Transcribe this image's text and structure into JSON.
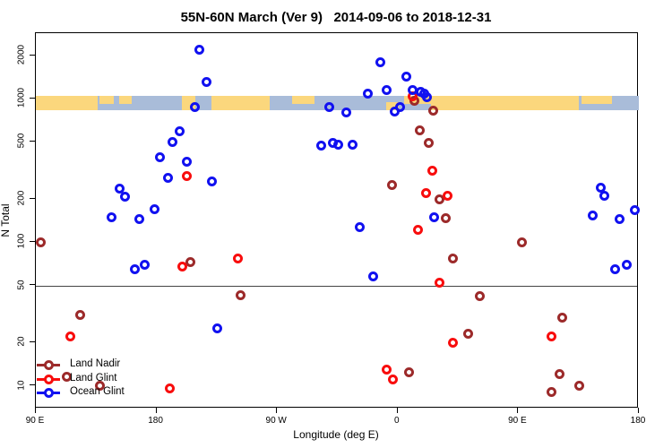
{
  "title": "55N-60N March (Ver 9)   2014-09-06 to 2018-12-31",
  "legend": [
    {
      "key": "land_nadir",
      "label": "Land Nadir"
    },
    {
      "key": "land_glint",
      "label": "Land Glint"
    },
    {
      "key": "ocean_glint",
      "label": "Ocean Glint"
    }
  ],
  "chart_data": {
    "type": "scatter",
    "title": "55N-60N March (Ver 9)   2014-09-06 to 2018-12-31",
    "xlabel": "Longitude (deg E)",
    "ylabel": "N Total",
    "x_range": [
      90,
      540
    ],
    "y_scale": "log",
    "y_anchor_top": {
      "value": 2000,
      "extra_decades_span": 160.2
    },
    "x_ticks": [
      {
        "lon": 90,
        "label": "90 E"
      },
      {
        "lon": 180,
        "label": "180"
      },
      {
        "lon": 270,
        "label": "90 W"
      },
      {
        "lon": 360,
        "label": "0"
      },
      {
        "lon": 450,
        "label": "90 E"
      },
      {
        "lon": 540,
        "label": "180"
      }
    ],
    "y_ticks": [
      10,
      20,
      50,
      100,
      200,
      500,
      1000,
      2000
    ],
    "ref_line_y": 50,
    "grid": false,
    "legend_position": "bottom-left",
    "colors": {
      "land_nadir": "#9C2A2A",
      "land_glint": "#F80D0D",
      "ocean_glint": "#1111F0",
      "strip_land": "#FBD77D",
      "strip_ocean": "#A9BCD9"
    },
    "map_strip": {
      "description": "land(orange)/ocean(blue-gray) mask band along 55N-60N",
      "n_top": 1050,
      "n_bottom": 830,
      "land_segments": [
        {
          "from": 90,
          "to": 136,
          "band": "full"
        },
        {
          "from": 137.5,
          "to": 148,
          "band": "top"
        },
        {
          "from": 152,
          "to": 161.5,
          "band": "top"
        },
        {
          "from": 199,
          "to": 209,
          "band": "full"
        },
        {
          "from": 221,
          "to": 264.5,
          "band": "full"
        },
        {
          "from": 281,
          "to": 298,
          "band": "top"
        },
        {
          "from": 351.5,
          "to": 361,
          "band": "bottom"
        },
        {
          "from": 365,
          "to": 385,
          "band": "top"
        },
        {
          "from": 385,
          "to": 495,
          "band": "full"
        },
        {
          "from": 497,
          "to": 520,
          "band": "top"
        }
      ]
    },
    "series": [
      {
        "name": "Land Nadir",
        "color_key": "land_nadir",
        "points": [
          [
            93.5,
            100
          ],
          [
            113,
            11.5
          ],
          [
            123,
            31
          ],
          [
            137.5,
            10
          ],
          [
            205.5,
            73
          ],
          [
            242.5,
            43
          ],
          [
            356,
            250
          ],
          [
            368.5,
            12.5
          ],
          [
            372.5,
            970
          ],
          [
            376.5,
            605
          ],
          [
            383,
            490
          ],
          [
            386.5,
            830
          ],
          [
            391.5,
            200
          ],
          [
            396,
            148
          ],
          [
            401.5,
            77
          ],
          [
            412.5,
            23
          ],
          [
            421,
            42
          ],
          [
            452.5,
            100
          ],
          [
            475,
            9
          ],
          [
            481,
            12
          ],
          [
            482.5,
            30
          ],
          [
            495.5,
            10
          ]
        ]
      },
      {
        "name": "Land Glint",
        "color_key": "land_glint",
        "points": [
          [
            115.5,
            22
          ],
          [
            190,
            9.6
          ],
          [
            199,
            68
          ],
          [
            202.5,
            290
          ],
          [
            241,
            77
          ],
          [
            352,
            13
          ],
          [
            356.5,
            11
          ],
          [
            371.5,
            1040
          ],
          [
            375,
            122
          ],
          [
            381,
            220
          ],
          [
            386,
            315
          ],
          [
            391.5,
            52
          ],
          [
            397,
            210
          ],
          [
            401,
            20
          ],
          [
            474.5,
            22
          ]
        ]
      },
      {
        "name": "Ocean Glint",
        "color_key": "ocean_glint",
        "points": [
          [
            146.5,
            150
          ],
          [
            152.5,
            235
          ],
          [
            156.5,
            207
          ],
          [
            164,
            65
          ],
          [
            167,
            145
          ],
          [
            171.5,
            70
          ],
          [
            178.5,
            170
          ],
          [
            182.5,
            390
          ],
          [
            188.5,
            280
          ],
          [
            192,
            500
          ],
          [
            197,
            590
          ],
          [
            202.5,
            365
          ],
          [
            208.5,
            870
          ],
          [
            212,
            2200
          ],
          [
            217.5,
            1300
          ],
          [
            221.5,
            265
          ],
          [
            225.5,
            25
          ],
          [
            303,
            470
          ],
          [
            309,
            870
          ],
          [
            311.5,
            495
          ],
          [
            316,
            480
          ],
          [
            322,
            800
          ],
          [
            326.5,
            480
          ],
          [
            331.5,
            127
          ],
          [
            338,
            1080
          ],
          [
            341.5,
            58
          ],
          [
            347,
            1800
          ],
          [
            351.5,
            1150
          ],
          [
            358,
            810
          ],
          [
            362,
            870
          ],
          [
            366.5,
            1430
          ],
          [
            371.5,
            1150
          ],
          [
            377,
            1120
          ],
          [
            380,
            1090
          ],
          [
            382,
            1030
          ],
          [
            387,
            150
          ],
          [
            505.5,
            153
          ],
          [
            511.5,
            240
          ],
          [
            514,
            210
          ],
          [
            522.5,
            65
          ],
          [
            525.5,
            146
          ],
          [
            531,
            70
          ],
          [
            537,
            168
          ]
        ]
      }
    ]
  }
}
